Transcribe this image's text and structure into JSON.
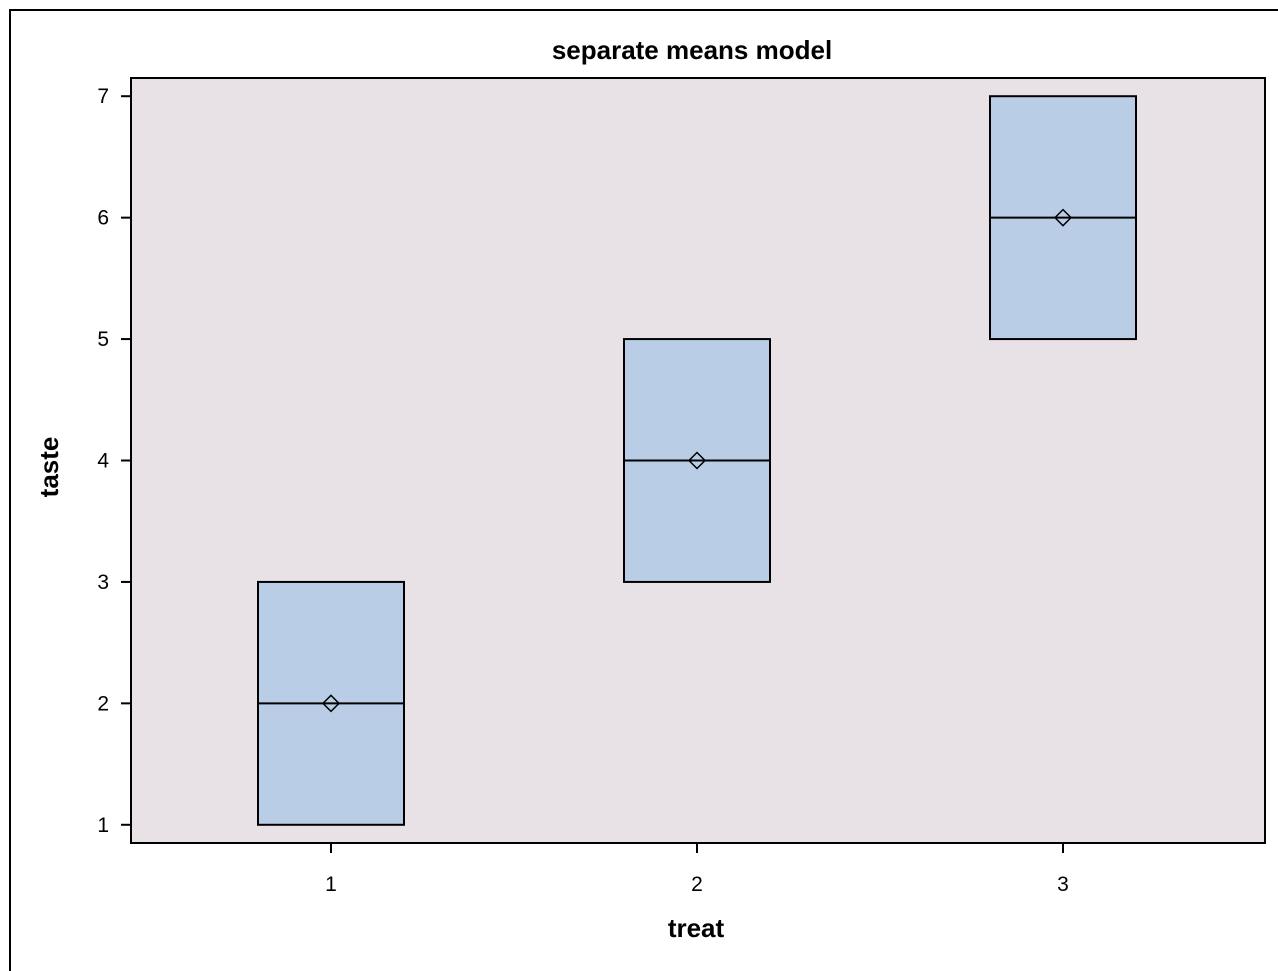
{
  "colors": {
    "plot_background": "#e8e2e7",
    "box_fill": "#b9cee6",
    "line": "#000000"
  },
  "chart_data": {
    "type": "box",
    "title": "separate means model",
    "xlabel": "treat",
    "ylabel": "taste",
    "categories": [
      "1",
      "2",
      "3"
    ],
    "boxes": [
      {
        "category": "1",
        "min": 1,
        "q1": 1,
        "median": 2,
        "mean": 2,
        "q3": 3,
        "max": 3
      },
      {
        "category": "2",
        "min": 3,
        "q1": 3,
        "median": 4,
        "mean": 4,
        "q3": 5,
        "max": 5
      },
      {
        "category": "3",
        "min": 5,
        "q1": 5,
        "median": 6,
        "mean": 6,
        "q3": 7,
        "max": 7
      }
    ],
    "ylim": [
      0.85,
      7.15
    ],
    "yticks": [
      1,
      2,
      3,
      4,
      5,
      6,
      7
    ],
    "ytick_labels": [
      "1",
      "2",
      "3",
      "4",
      "5",
      "6",
      "7"
    ],
    "mean_marker": "diamond",
    "grid": false
  }
}
